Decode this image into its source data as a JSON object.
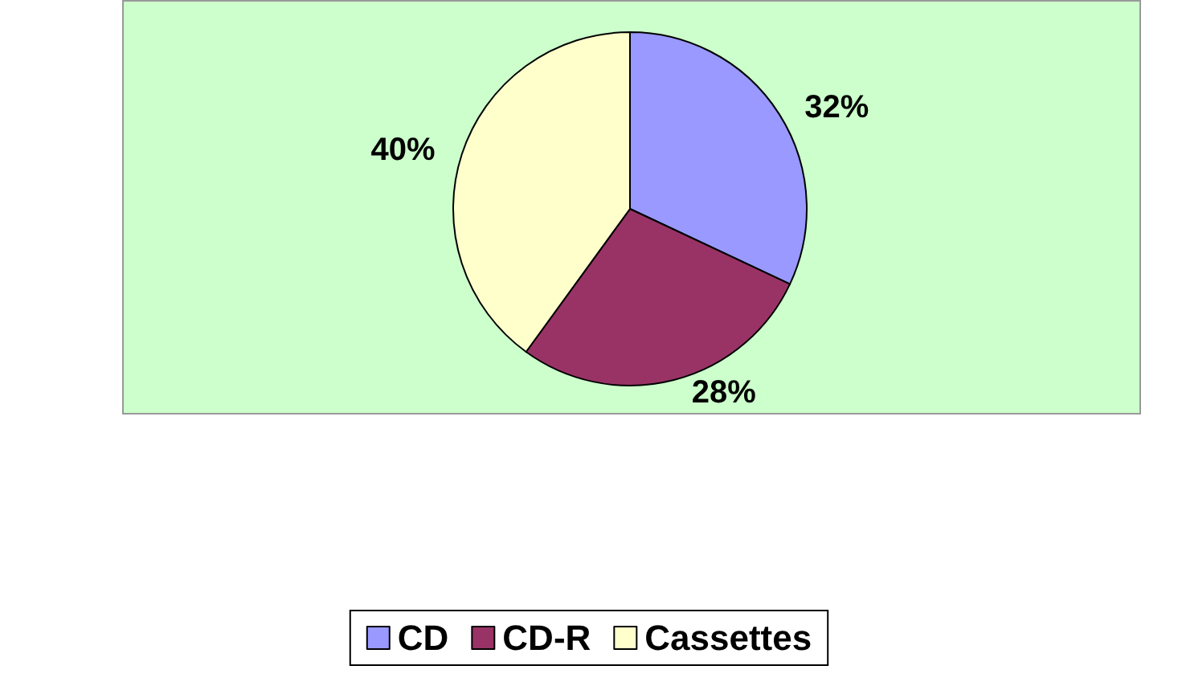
{
  "chart_data": {
    "type": "pie",
    "categories": [
      "CD",
      "CD-R",
      "Cassettes"
    ],
    "values": [
      32,
      28,
      40
    ],
    "colors": [
      "#9999ff",
      "#993366",
      "#ffffcc"
    ],
    "value_labels": [
      "32%",
      "28%",
      "40%"
    ],
    "legend": "bottom"
  }
}
